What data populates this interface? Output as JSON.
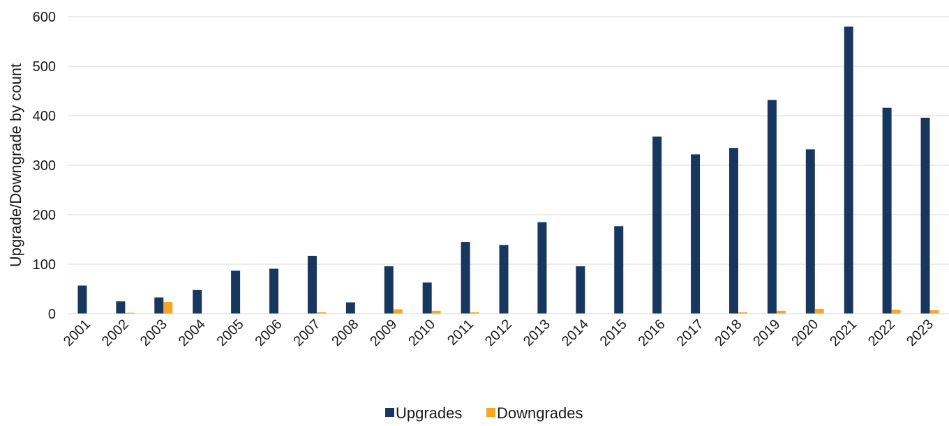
{
  "chart_data": {
    "type": "bar",
    "title": "",
    "xlabel": "",
    "ylabel": "Upgrade/Downgrade by count",
    "ylim": [
      0,
      600
    ],
    "yticks": [
      0,
      100,
      200,
      300,
      400,
      500,
      600
    ],
    "grid": true,
    "legend_position": "bottom",
    "categories": [
      "2001",
      "2002",
      "2003",
      "2004",
      "2005",
      "2006",
      "2007",
      "2008",
      "2009",
      "2010",
      "2011",
      "2012",
      "2013",
      "2014",
      "2015",
      "2016",
      "2017",
      "2018",
      "2019",
      "2020",
      "2021",
      "2022",
      "2023"
    ],
    "series": [
      {
        "name": "Upgrades",
        "color": "#17375e",
        "values": [
          57,
          25,
          33,
          48,
          87,
          91,
          117,
          23,
          96,
          63,
          145,
          139,
          185,
          96,
          177,
          358,
          322,
          335,
          432,
          332,
          580,
          416,
          396
        ]
      },
      {
        "name": "Downgrades",
        "color": "#f5a623",
        "values": [
          0,
          2,
          24,
          0,
          0,
          0,
          3,
          0,
          9,
          6,
          3,
          0,
          0,
          0,
          0,
          0,
          0,
          3,
          6,
          10,
          0,
          8,
          7
        ]
      }
    ]
  }
}
